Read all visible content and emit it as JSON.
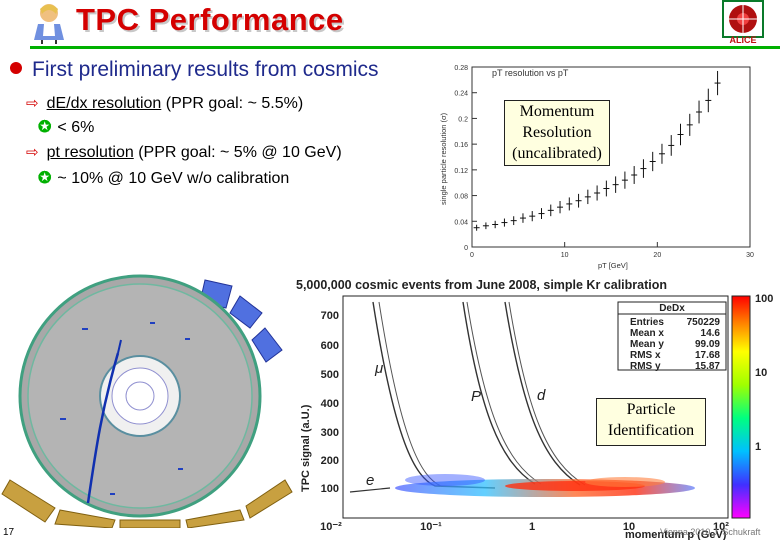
{
  "header": {
    "title": "TPC Performance",
    "logo_text": "ALICE"
  },
  "bullets": {
    "main": "First preliminary results from cosmics",
    "items": [
      {
        "label": "dE/dx resolution",
        "rest": " (PPR goal: ~ 5.5%)",
        "result": "< 6%"
      },
      {
        "label": "pt resolution",
        "rest": " (PPR goal: ~ 5% @ 10 GeV)",
        "result": "~ 10% @ 10 GeV w/o calibration"
      }
    ]
  },
  "momentum_plot": {
    "label_line1": "Momentum",
    "label_line2": "Resolution",
    "label_line3": "(uncalibrated)"
  },
  "pid_plot": {
    "header": "5,000,000 cosmic events from June 2008, simple Kr calibration",
    "label_line1": "Particle",
    "label_line2": "Identification",
    "ylabel": "TPC signal (a.U.)",
    "xlabel": "momentum p (GeV)",
    "particles": [
      "μ",
      "P",
      "d",
      "e"
    ],
    "stats": {
      "title": "DeDx",
      "rows": [
        {
          "k": "Entries",
          "v": "750229"
        },
        {
          "k": "Mean x",
          "v": "14.6"
        },
        {
          "k": "Mean y",
          "v": "99.09"
        },
        {
          "k": "RMS x",
          "v": "17.68"
        },
        {
          "k": "RMS y",
          "v": "15.87"
        }
      ]
    },
    "yticks": [
      "700",
      "600",
      "500",
      "400",
      "300",
      "200",
      "100"
    ],
    "xticks": [
      "10⁻²",
      "10⁻¹",
      "1",
      "10",
      "10²"
    ],
    "colorbar_ticks": [
      "100",
      "10",
      "1"
    ]
  },
  "chart_data": {
    "type": "scatter",
    "title": "pT resolution vs pT",
    "xlabel": "pT [GeV]",
    "ylabel": "single particle resolution (σ)",
    "xlim": [
      0,
      30
    ],
    "ylim": [
      0,
      0.28
    ],
    "xticks": [
      0,
      10,
      20,
      30
    ],
    "yticks": [
      0,
      0.04,
      0.08,
      0.12,
      0.16,
      0.2,
      0.24,
      0.28
    ],
    "x": [
      0.5,
      1.5,
      2.5,
      3.5,
      4.5,
      5.5,
      6.5,
      7.5,
      8.5,
      9.5,
      10.5,
      11.5,
      12.5,
      13.5,
      14.5,
      15.5,
      16.5,
      17.5,
      18.5,
      19.5,
      20.5,
      21.5,
      22.5,
      23.5,
      24.5,
      25.5,
      26.5
    ],
    "y": [
      0.03,
      0.033,
      0.035,
      0.038,
      0.041,
      0.045,
      0.048,
      0.052,
      0.057,
      0.062,
      0.067,
      0.072,
      0.078,
      0.084,
      0.091,
      0.097,
      0.104,
      0.112,
      0.122,
      0.133,
      0.145,
      0.158,
      0.175,
      0.19,
      0.21,
      0.228,
      0.255
    ]
  },
  "footer": {
    "slide_number": "17",
    "credit": "Vienna 2010   J. Schukraft"
  }
}
